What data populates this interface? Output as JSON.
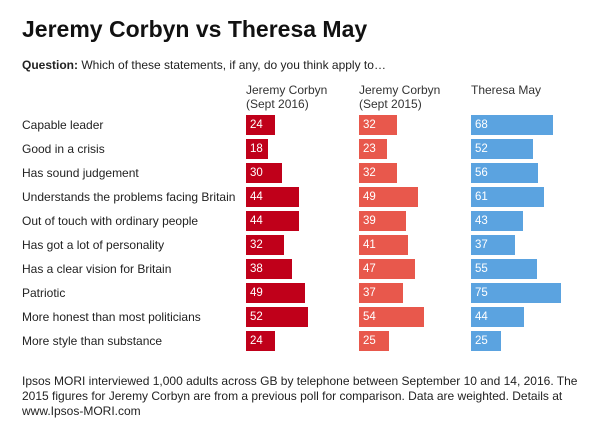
{
  "title": "Jeremy Corbyn vs Theresa May",
  "question": {
    "label": "Question:",
    "text": "Which of these statements, if any, do you think apply to…"
  },
  "footnote": "Ipsos MORI interviewed 1,000 adults across GB by telephone between September 10 and 14, 2016. The 2015 figures for Jeremy Corbyn are from a previous poll for comparison. Data are weighted. Details at www.Ipsos-MORI.com",
  "chart_data": {
    "type": "bar",
    "orientation": "horizontal",
    "layout": "small-multiples",
    "categories": [
      "Capable leader",
      "Good in a crisis",
      "Has sound judgement",
      "Understands the problems facing Britain",
      "Out of touch with ordinary people",
      "Has got a lot of personality",
      "Has a clear vision for Britain",
      "Patriotic",
      "More honest than most politicians",
      "More style than substance"
    ],
    "series": [
      {
        "name": "Jeremy Corbyn\n(Sept 2016)",
        "color": "#c0001a",
        "values": [
          24,
          18,
          30,
          44,
          44,
          32,
          38,
          49,
          52,
          24
        ]
      },
      {
        "name": "Jeremy Corbyn\n(Sept 2015)",
        "color": "#e8584c",
        "values": [
          32,
          23,
          32,
          49,
          39,
          41,
          47,
          37,
          54,
          25
        ]
      },
      {
        "name": "Theresa May",
        "color": "#5ba3e0",
        "values": [
          68,
          52,
          56,
          61,
          43,
          37,
          55,
          75,
          44,
          25
        ]
      }
    ],
    "data_labels": true,
    "grid": false
  }
}
